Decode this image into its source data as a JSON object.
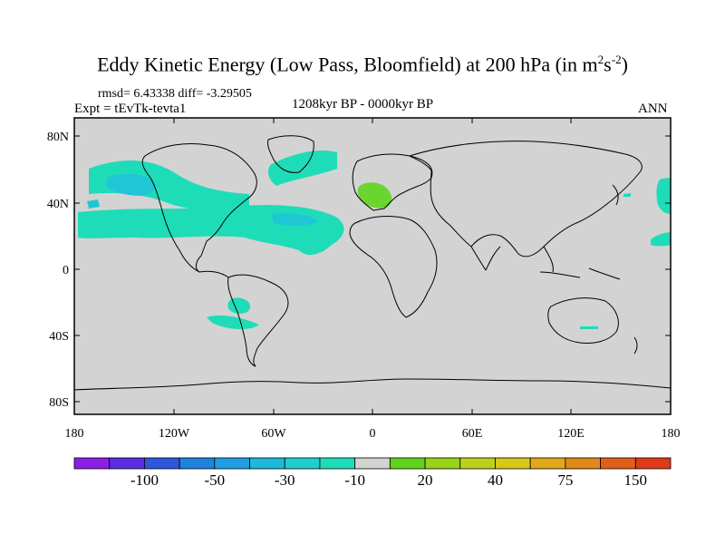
{
  "title": {
    "main": "Eddy Kinetic Energy (Low Pass, Bloomfield) at 200 hPa (in m",
    "sup1": "2",
    "mid": "s",
    "sup2": "-2",
    "end": ")"
  },
  "stats": "rmsd= 6.43338 diff= -3.29505",
  "experiment": "Expt = tEvTk-tevta1",
  "period": "1208kyr BP - 0000kyr BP",
  "season": "ANN",
  "map": {
    "lat_ticks": [
      "80N",
      "40N",
      "0",
      "40S",
      "80S"
    ],
    "lon_ticks": [
      "180",
      "120W",
      "60W",
      "0",
      "60E",
      "120E",
      "180"
    ],
    "background_color": "#d3d3d3",
    "land_outline_color": "#000000"
  },
  "colorbar": {
    "colors": [
      "#8c1fe5",
      "#5a2ee0",
      "#2f57de",
      "#1f82de",
      "#1f9fdf",
      "#1fb8d8",
      "#1fcfd0",
      "#1fdcb8",
      "#d3d3d3",
      "#5fd21a",
      "#9ad21a",
      "#bcd21a",
      "#d8c81a",
      "#e0a81a",
      "#e0881a",
      "#e0601a",
      "#e03a1a"
    ],
    "labels": [
      "-100",
      "-50",
      "-30",
      "-10",
      "20",
      "40",
      "75",
      "150"
    ]
  },
  "colors": {
    "positive_anomaly": "#6ad52e",
    "negative_anomaly": "#1fdcb8",
    "negative_strong": "#1fc6d4"
  }
}
